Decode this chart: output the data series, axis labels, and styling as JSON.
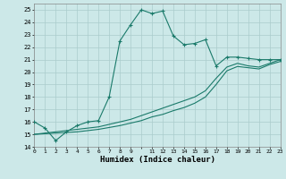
{
  "xlabel": "Humidex (Indice chaleur)",
  "background_color": "#cce8e8",
  "grid_color": "#aacccc",
  "line_color": "#1a7a6a",
  "xlim": [
    0,
    23
  ],
  "ylim": [
    14,
    25.5
  ],
  "yticks": [
    14,
    15,
    16,
    17,
    18,
    19,
    20,
    21,
    22,
    23,
    24,
    25
  ],
  "line1_x": [
    0,
    1,
    2,
    3,
    4,
    5,
    6,
    7,
    8,
    9,
    10,
    11,
    12,
    13,
    14,
    15,
    16,
    17,
    18,
    19,
    20,
    21,
    22,
    23
  ],
  "line1_y": [
    16.0,
    15.5,
    14.5,
    15.2,
    15.7,
    16.0,
    16.1,
    18.0,
    22.5,
    23.8,
    25.0,
    24.7,
    24.9,
    22.9,
    22.2,
    22.3,
    22.6,
    20.5,
    21.2,
    21.2,
    21.1,
    21.0,
    21.0,
    21.0
  ],
  "line2_x": [
    0,
    1,
    2,
    3,
    4,
    5,
    6,
    7,
    8,
    9,
    10,
    11,
    12,
    13,
    14,
    15,
    16,
    17,
    18,
    19,
    20,
    21,
    22,
    23
  ],
  "line2_y": [
    15.0,
    15.1,
    15.2,
    15.3,
    15.4,
    15.5,
    15.6,
    15.8,
    16.0,
    16.2,
    16.5,
    16.8,
    17.1,
    17.4,
    17.7,
    18.0,
    18.5,
    19.5,
    20.4,
    20.7,
    20.5,
    20.4,
    20.7,
    21.0
  ],
  "line3_x": [
    0,
    1,
    2,
    3,
    4,
    5,
    6,
    7,
    8,
    9,
    10,
    11,
    12,
    13,
    14,
    15,
    16,
    17,
    18,
    19,
    20,
    21,
    22,
    23
  ],
  "line3_y": [
    15.0,
    15.05,
    15.1,
    15.15,
    15.2,
    15.3,
    15.4,
    15.55,
    15.7,
    15.9,
    16.1,
    16.4,
    16.6,
    16.9,
    17.15,
    17.5,
    18.0,
    19.0,
    20.1,
    20.45,
    20.35,
    20.25,
    20.6,
    20.85
  ],
  "marker": "+",
  "markersize": 3,
  "linewidth": 0.8
}
